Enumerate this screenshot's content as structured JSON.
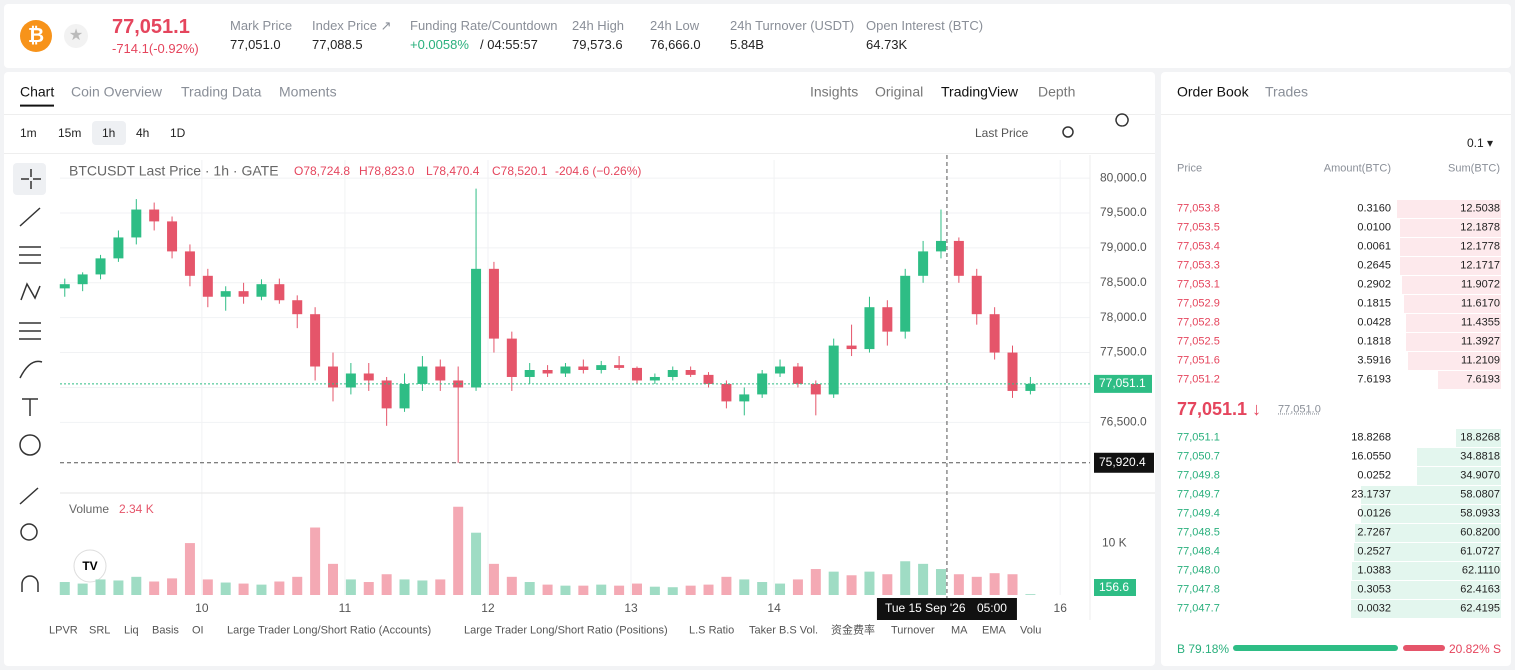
{
  "header": {
    "price": "77,051.1",
    "change": "-714.1(-0.92%)",
    "stats": [
      {
        "label": "Mark Price",
        "value": "77,051.0"
      },
      {
        "label": "Index Price ↗",
        "value": "77,088.5"
      },
      {
        "label": "Funding Rate/Countdown",
        "value": "+0.0058%",
        "extra": "/ 04:55:57"
      },
      {
        "label": "24h High",
        "value": "79,573.6"
      },
      {
        "label": "24h Low",
        "value": "76,666.0"
      },
      {
        "label": "24h Turnover (USDT)",
        "value": "5.84B"
      },
      {
        "label": "Open Interest (BTC)",
        "value": "64.73K"
      }
    ]
  },
  "chart_tabs": [
    "Chart",
    "Coin Overview",
    "Trading Data",
    "Moments"
  ],
  "view_tabs": [
    "Insights",
    "Original",
    "TradingView",
    "Depth"
  ],
  "intervals": [
    "1m",
    "15m",
    "1h",
    "4h",
    "1D"
  ],
  "price_type": "Last Price",
  "legend": {
    "symbol": "BTCUSDT Last Price · 1h · GATE",
    "ohlc": [
      "O78,724.8",
      "H78,823.0",
      "L78,470.4",
      "C78,520.1",
      "-204.6 (−0.26%)"
    ]
  },
  "chart_data": {
    "type": "candlestick",
    "up_color": "#2ebd85",
    "down_color": "#e5556a",
    "x": [
      1,
      4,
      7,
      10,
      13,
      16,
      19,
      22,
      25,
      28,
      31,
      34,
      37,
      40,
      43,
      46,
      49,
      52,
      55,
      58,
      61,
      64,
      67,
      70,
      73,
      76,
      79,
      82,
      85,
      88,
      91,
      94,
      97,
      100,
      103,
      106,
      109,
      112,
      115,
      118,
      121,
      124,
      127,
      130,
      133,
      136,
      139,
      142,
      145,
      148,
      151,
      154,
      157,
      160,
      163
    ],
    "open": [
      78420,
      78480,
      78620,
      78850,
      79150,
      79550,
      79380,
      78950,
      78600,
      78300,
      78380,
      78300,
      78480,
      78250,
      78050,
      77300,
      77000,
      77200,
      77100,
      76700,
      77050,
      77300,
      77100,
      77000,
      78700,
      77700,
      77150,
      77250,
      77200,
      77300,
      77250,
      77320,
      77280,
      77100,
      77150,
      77250,
      77180,
      77050,
      76800,
      76900,
      77200,
      77300,
      77050,
      76900,
      77600,
      77550,
      78150,
      77800,
      78600,
      78950,
      79100,
      78600,
      78050,
      77500,
      76950
    ],
    "high": [
      78560,
      78650,
      78900,
      79250,
      79700,
      79650,
      79450,
      79050,
      78700,
      78450,
      78500,
      78550,
      78560,
      78320,
      78150,
      77500,
      77350,
      77350,
      77150,
      77200,
      77450,
      77400,
      77300,
      79850,
      78800,
      77800,
      77350,
      77320,
      77350,
      77400,
      77380,
      77450,
      77300,
      77200,
      77300,
      77300,
      77220,
      77100,
      77000,
      77250,
      77400,
      77350,
      77100,
      77700,
      77900,
      78300,
      78250,
      78700,
      79100,
      79550,
      79150,
      78700,
      78150,
      77600,
      77150
    ],
    "low": [
      78300,
      78380,
      78550,
      78800,
      79050,
      79250,
      78850,
      78450,
      78150,
      78100,
      78200,
      78250,
      78200,
      77850,
      77100,
      76800,
      76900,
      76950,
      76450,
      76650,
      76950,
      76950,
      75920,
      76950,
      77500,
      76950,
      77050,
      77150,
      77150,
      77200,
      77200,
      77250,
      77050,
      77050,
      77100,
      77150,
      77000,
      76700,
      76600,
      76850,
      77150,
      77000,
      76600,
      76850,
      77450,
      77500,
      77600,
      77700,
      78500,
      78850,
      78500,
      77900,
      77400,
      76850,
      76900
    ],
    "close": [
      78480,
      78620,
      78850,
      79150,
      79550,
      79380,
      78950,
      78600,
      78300,
      78380,
      78300,
      78480,
      78250,
      78050,
      77300,
      77000,
      77200,
      77100,
      76700,
      77050,
      77300,
      77100,
      77000,
      78700,
      77700,
      77150,
      77250,
      77200,
      77300,
      77250,
      77320,
      77280,
      77100,
      77150,
      77250,
      77180,
      77050,
      76800,
      76900,
      77200,
      77300,
      77050,
      76900,
      77600,
      77550,
      78150,
      77800,
      78600,
      78950,
      79100,
      78600,
      78050,
      77500,
      76950,
      77051.1
    ],
    "xlim": [
      0.2,
      173
    ],
    "xticks": [
      {
        "value": 24,
        "label": "10"
      },
      {
        "value": 48,
        "label": "11"
      },
      {
        "value": 72,
        "label": "12"
      },
      {
        "value": 96,
        "label": "13"
      },
      {
        "value": 120,
        "label": "14"
      },
      {
        "value": 168,
        "label": "16"
      }
    ],
    "ylim": [
      75530,
      80260
    ],
    "yticks": [
      {
        "value": 76500,
        "label": "76,500.0"
      },
      {
        "value": 77000,
        "label": "77,000.0"
      },
      {
        "value": 77500,
        "label": "77,500.0"
      },
      {
        "value": 78000,
        "label": "78,000.0"
      },
      {
        "value": 78500,
        "label": "78,500.0"
      },
      {
        "value": 79000,
        "label": "79,000.0"
      },
      {
        "value": 79500,
        "label": "79,500.0"
      },
      {
        "value": 80000,
        "label": "80,000.0"
      }
    ],
    "grid": true,
    "last_price": {
      "value": 77051.1,
      "label": "77,051.1"
    },
    "crosshair": {
      "x": 149,
      "value": 75920.4,
      "label": "75,920.4",
      "time": "Tue 15 Sep '26",
      "hour": "05:00"
    },
    "volume": {
      "title": "Volume",
      "current": "2.34 K",
      "values": [
        2500,
        2200,
        3000,
        2800,
        3500,
        2600,
        3200,
        10000,
        3000,
        2400,
        2200,
        2000,
        2600,
        3500,
        13000,
        6000,
        3000,
        2500,
        4000,
        3000,
        2800,
        3000,
        17000,
        12000,
        6000,
        3500,
        2500,
        2000,
        1800,
        1800,
        2000,
        1800,
        2200,
        1600,
        1500,
        1800,
        2000,
        3500,
        3000,
        2500,
        2200,
        3000,
        5000,
        4500,
        3800,
        4500,
        4000,
        6500,
        6000,
        5000,
        4000,
        3500,
        4200,
        4000,
        156.6
      ],
      "ylim": [
        0,
        18300
      ],
      "yticks": [
        {
          "value": 10000,
          "label": "10 K"
        }
      ],
      "last_label": "156.6"
    }
  },
  "indicators": [
    "LPVR",
    "SRL",
    "Liq",
    "Basis",
    "OI",
    "Large Trader Long/Short Ratio (Accounts)",
    "Large Trader Long/Short Ratio (Positions)",
    "L.S Ratio",
    "Taker B.S Vol.",
    "资金费率",
    "Turnover",
    "MA",
    "EMA",
    "Volu"
  ],
  "order_book": {
    "tabs": [
      "Order Book",
      "Trades"
    ],
    "precision": "0.1 ▾",
    "columns": [
      "Price",
      "Amount(BTC)",
      "Sum(BTC)"
    ],
    "asks": [
      [
        "77,053.8",
        "0.3160",
        "12.5038"
      ],
      [
        "77,053.5",
        "0.0100",
        "12.1878"
      ],
      [
        "77,053.4",
        "0.0061",
        "12.1778"
      ],
      [
        "77,053.3",
        "0.2645",
        "12.1717"
      ],
      [
        "77,053.1",
        "0.2902",
        "11.9072"
      ],
      [
        "77,052.9",
        "0.1815",
        "11.6170"
      ],
      [
        "77,052.8",
        "0.0428",
        "11.4355"
      ],
      [
        "77,052.5",
        "0.1818",
        "11.3927"
      ],
      [
        "77,051.6",
        "3.5916",
        "11.2109"
      ],
      [
        "77,051.2",
        "7.6193",
        "7.6193"
      ]
    ],
    "mid": {
      "price": "77,051.1 ↓",
      "mark": "77,051.0"
    },
    "bids": [
      [
        "77,051.1",
        "18.8268",
        "18.8268"
      ],
      [
        "77,050.7",
        "16.0550",
        "34.8818"
      ],
      [
        "77,049.8",
        "0.0252",
        "34.9070"
      ],
      [
        "77,049.7",
        "23.1737",
        "58.0807"
      ],
      [
        "77,049.4",
        "0.0126",
        "58.0933"
      ],
      [
        "77,048.5",
        "2.7267",
        "60.8200"
      ],
      [
        "77,048.4",
        "0.2527",
        "61.0727"
      ],
      [
        "77,048.0",
        "1.0383",
        "62.1110"
      ],
      [
        "77,047.8",
        "0.3053",
        "62.4163"
      ],
      [
        "77,047.7",
        "0.0032",
        "62.4195"
      ]
    ],
    "ratio": {
      "buy": "B 79.18%",
      "sell": "20.82% S"
    }
  }
}
